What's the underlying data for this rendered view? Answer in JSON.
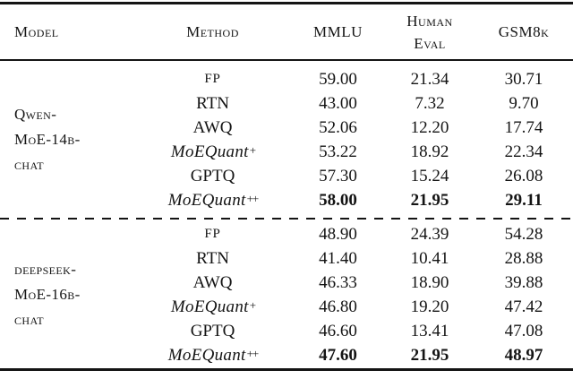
{
  "table": {
    "header": {
      "model": "Model",
      "method": "Method",
      "mmlu": "MMLU",
      "humaneval_line1": "Human",
      "humaneval_line2": "Eval",
      "gsm8k": "GSM8k"
    },
    "groups": [
      {
        "model_lines": [
          "Qwen-",
          "MoE-14b-",
          "chat"
        ],
        "rows": [
          {
            "method": "FP",
            "sup": "",
            "mmlu": "59.00",
            "humaneval": "21.34",
            "gsm8k": "30.71"
          },
          {
            "method": "RTN",
            "sup": "",
            "mmlu": "43.00",
            "humaneval": "7.32",
            "gsm8k": "9.70"
          },
          {
            "method": "AWQ",
            "sup": "",
            "mmlu": "52.06",
            "humaneval": "12.20",
            "gsm8k": "17.74"
          },
          {
            "method": "MoEQuant",
            "sup": "+",
            "mmlu": "53.22",
            "humaneval": "18.92",
            "gsm8k": "22.34"
          },
          {
            "method": "GPTQ",
            "sup": "",
            "mmlu": "57.30",
            "humaneval": "15.24",
            "gsm8k": "26.08"
          },
          {
            "method": "MoEQuant",
            "sup": "++",
            "mmlu": "58.00",
            "humaneval": "21.95",
            "gsm8k": "29.11"
          }
        ]
      },
      {
        "model_lines": [
          "deepseek-",
          "MoE-16b-",
          "chat"
        ],
        "rows": [
          {
            "method": "FP",
            "sup": "",
            "mmlu": "48.90",
            "humaneval": "24.39",
            "gsm8k": "54.28"
          },
          {
            "method": "RTN",
            "sup": "",
            "mmlu": "41.40",
            "humaneval": "10.41",
            "gsm8k": "28.88"
          },
          {
            "method": "AWQ",
            "sup": "",
            "mmlu": "46.33",
            "humaneval": "18.90",
            "gsm8k": "39.88"
          },
          {
            "method": "MoEQuant",
            "sup": "+",
            "mmlu": "46.80",
            "humaneval": "19.20",
            "gsm8k": "47.42"
          },
          {
            "method": "GPTQ",
            "sup": "",
            "mmlu": "46.60",
            "humaneval": "13.41",
            "gsm8k": "47.08"
          },
          {
            "method": "MoEQuant",
            "sup": "++",
            "mmlu": "47.60",
            "humaneval": "21.95",
            "gsm8k": "48.97"
          }
        ]
      }
    ]
  }
}
